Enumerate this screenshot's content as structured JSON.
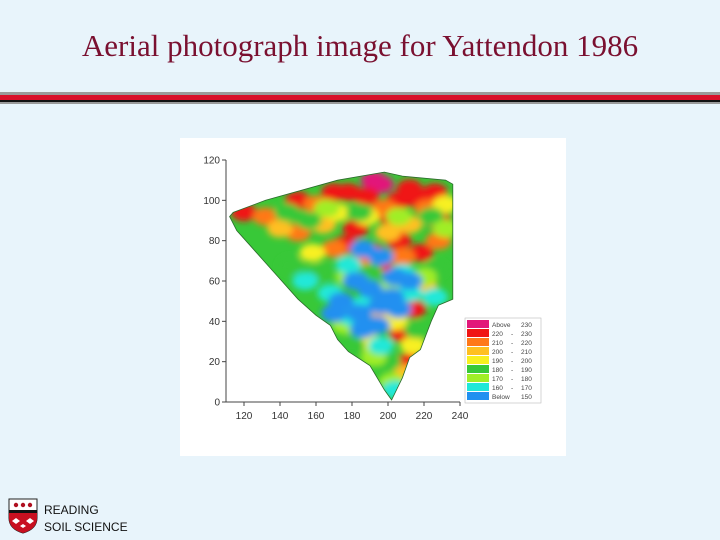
{
  "slide": {
    "title": "Aerial photograph image for Yattendon 1986"
  },
  "footer": {
    "line1": "READING",
    "line2": "SOIL SCIENCE"
  },
  "chart_data": {
    "type": "heatmap",
    "title": "",
    "xlabel": "",
    "ylabel": "",
    "xlim": [
      110,
      240
    ],
    "ylim": [
      0,
      120
    ],
    "x_ticks": [
      "120",
      "140",
      "160",
      "180",
      "200",
      "220",
      "240"
    ],
    "y_ticks": [
      "0",
      "20",
      "40",
      "60",
      "80",
      "100",
      "120"
    ],
    "x_tick_values": [
      120,
      140,
      160,
      180,
      200,
      220,
      240
    ],
    "y_tick_values": [
      0,
      20,
      40,
      60,
      80,
      100,
      120
    ],
    "field_outline": [
      [
        114,
        94
      ],
      [
        132,
        100
      ],
      [
        172,
        110
      ],
      [
        198,
        114
      ],
      [
        208,
        112
      ],
      [
        232,
        110
      ],
      [
        236,
        108
      ],
      [
        236,
        51
      ],
      [
        228,
        48
      ],
      [
        224,
        40
      ],
      [
        218,
        26
      ],
      [
        212,
        22
      ],
      [
        208,
        12
      ],
      [
        202,
        1
      ],
      [
        198,
        6
      ],
      [
        190,
        18
      ],
      [
        178,
        25
      ],
      [
        172,
        31
      ],
      [
        168,
        38
      ],
      [
        160,
        43
      ],
      [
        150,
        51
      ],
      [
        140,
        61
      ],
      [
        132,
        69
      ],
      [
        124,
        77
      ],
      [
        116,
        85
      ],
      [
        112,
        92
      ]
    ],
    "colour_scale": {
      "colours": [
        "#e2187a",
        "#f01414",
        "#ff7818",
        "#ffc020",
        "#f8f020",
        "#38c838",
        "#a0ee28",
        "#20e8d8",
        "#2090f0"
      ],
      "labels": [
        [
          "Above",
          "230"
        ],
        [
          "220",
          "230"
        ],
        [
          "210",
          "220"
        ],
        [
          "200",
          "210"
        ],
        [
          "190",
          "200"
        ],
        [
          "180",
          "190"
        ],
        [
          "170",
          "180"
        ],
        [
          "160",
          "170"
        ],
        [
          "Below",
          "150"
        ]
      ]
    },
    "regions": [
      {
        "range": "Above 230",
        "points": [
          [
            192,
            110
          ],
          [
            196,
            108
          ]
        ]
      },
      {
        "range": "220 - 230",
        "points": [
          [
            120,
            94
          ],
          [
            150,
            100
          ],
          [
            170,
            104
          ],
          [
            178,
            104
          ],
          [
            188,
            102
          ],
          [
            206,
            100
          ],
          [
            212,
            106
          ],
          [
            218,
            100
          ],
          [
            226,
            104
          ],
          [
            202,
            92
          ],
          [
            182,
            86
          ],
          [
            176,
            78
          ],
          [
            192,
            74
          ],
          [
            206,
            80
          ],
          [
            218,
            74
          ],
          [
            228,
            90
          ],
          [
            196,
            66
          ],
          [
            214,
            46
          ],
          [
            208,
            34
          ],
          [
            212,
            20
          ]
        ]
      },
      {
        "range": "210 - 220",
        "points": [
          [
            132,
            92
          ],
          [
            160,
            98
          ],
          [
            198,
            96
          ],
          [
            222,
            96
          ],
          [
            150,
            84
          ],
          [
            170,
            76
          ],
          [
            186,
            70
          ],
          [
            208,
            72
          ],
          [
            228,
            80
          ]
        ]
      },
      {
        "range": "200 - 210",
        "points": [
          [
            140,
            86
          ],
          [
            164,
            88
          ],
          [
            212,
            88
          ],
          [
            200,
            84
          ],
          [
            220,
            58
          ],
          [
            196,
            46
          ],
          [
            210,
            14
          ]
        ]
      },
      {
        "range": "190 - 200",
        "points": [
          [
            172,
            94
          ],
          [
            188,
            92
          ],
          [
            232,
            98
          ],
          [
            158,
            74
          ],
          [
            204,
            40
          ],
          [
            188,
            30
          ],
          [
            214,
            28
          ]
        ]
      },
      {
        "range": "180 - 190",
        "points": [
          [
            144,
            94
          ],
          [
            156,
            90
          ],
          [
            184,
            94
          ],
          [
            224,
            92
          ],
          [
            146,
            68
          ],
          [
            162,
            64
          ],
          [
            190,
            64
          ],
          [
            226,
            66
          ],
          [
            216,
            36
          ],
          [
            200,
            20
          ],
          [
            180,
            28
          ]
        ]
      },
      {
        "range": "170 - 180",
        "points": [
          [
            166,
            96
          ],
          [
            206,
            92
          ],
          [
            232,
            86
          ],
          [
            178,
            62
          ],
          [
            200,
            56
          ],
          [
            220,
            62
          ],
          [
            176,
            38
          ],
          [
            192,
            22
          ],
          [
            202,
            10
          ]
        ]
      },
      {
        "range": "160 - 170",
        "points": [
          [
            178,
            68
          ],
          [
            208,
            64
          ],
          [
            154,
            60
          ],
          [
            168,
            54
          ],
          [
            186,
            48
          ],
          [
            212,
            54
          ],
          [
            226,
            52
          ],
          [
            180,
            42
          ],
          [
            196,
            28
          ],
          [
            204,
            6
          ]
        ]
      },
      {
        "range": "Below 150",
        "points": [
          [
            186,
            76
          ],
          [
            196,
            72
          ],
          [
            204,
            62
          ],
          [
            212,
            60
          ],
          [
            182,
            60
          ],
          [
            190,
            56
          ],
          [
            202,
            52
          ],
          [
            174,
            50
          ],
          [
            184,
            44
          ],
          [
            194,
            38
          ],
          [
            186,
            36
          ],
          [
            170,
            44
          ],
          [
            196,
            48
          ],
          [
            206,
            46
          ]
        ]
      }
    ]
  }
}
